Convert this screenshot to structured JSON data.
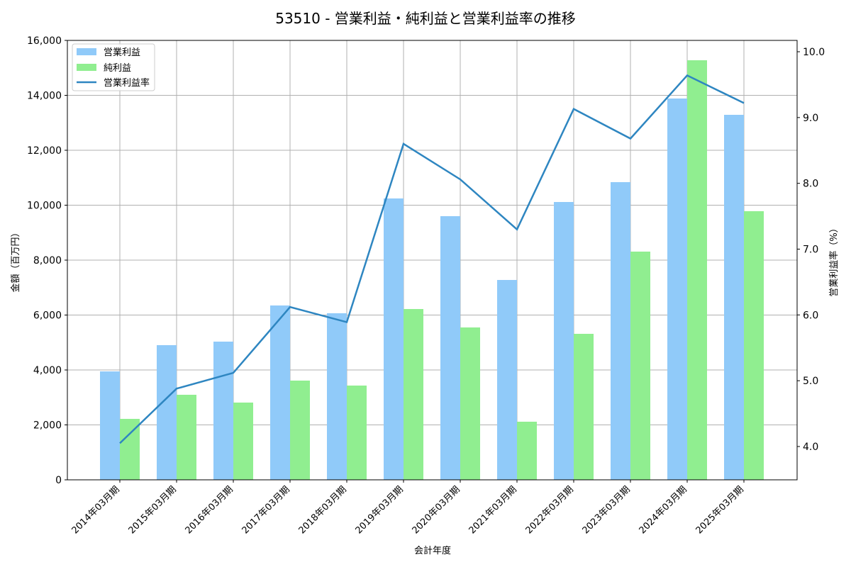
{
  "chart_data": {
    "type": "bar",
    "title": "53510 - 営業利益・純利益と営業利益率の推移",
    "xlabel": "会計年度",
    "ylabel": "金額（百万円）",
    "y2label": "営業利益率（%）",
    "categories": [
      "2014年03月期",
      "2015年03月期",
      "2016年03月期",
      "2017年03月期",
      "2018年03月期",
      "2019年03月期",
      "2020年03月期",
      "2021年03月期",
      "2022年03月期",
      "2023年03月期",
      "2024年03月期",
      "2025年03月期"
    ],
    "series": [
      {
        "name": "営業利益",
        "type": "bar",
        "axis": "left",
        "color": "#90CAF9",
        "values": [
          3948,
          4903,
          5032,
          6348,
          6065,
          10245,
          9600,
          7277,
          10116,
          10839,
          13884,
          13290
        ]
      },
      {
        "name": "純利益",
        "type": "bar",
        "axis": "left",
        "color": "#90EE90",
        "values": [
          2219,
          3097,
          2813,
          3613,
          3432,
          6219,
          5548,
          2116,
          5316,
          8310,
          15277,
          9781
        ]
      },
      {
        "name": "営業利益率",
        "type": "line",
        "axis": "right",
        "color": "#2E86C1",
        "values": [
          4.05,
          4.88,
          5.12,
          6.12,
          5.89,
          8.6,
          8.06,
          7.3,
          9.13,
          8.68,
          9.64,
          9.22
        ]
      }
    ],
    "ylim": [
      0,
      16000
    ],
    "yticks": [
      "0",
      "2,000",
      "4,000",
      "6,000",
      "8,000",
      "10,000",
      "12,000",
      "14,000",
      "16,000"
    ],
    "y2lim": [
      3.5,
      10.17
    ],
    "y2ticks": [
      "4.0",
      "5.0",
      "6.0",
      "7.0",
      "8.0",
      "9.0",
      "10.0"
    ],
    "grid": true,
    "legend_position": "upper left"
  }
}
